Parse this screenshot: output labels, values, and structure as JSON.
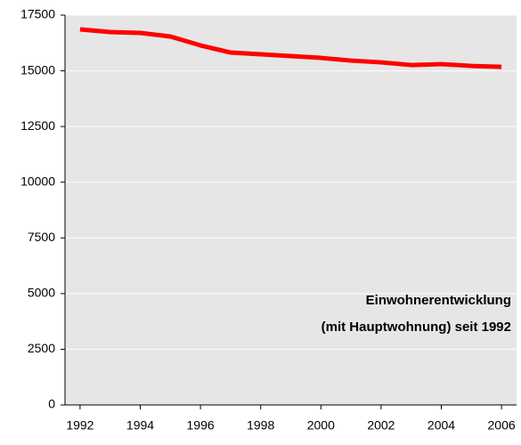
{
  "chart_data": {
    "type": "line",
    "title": [
      "Einwohnerentwicklung",
      "(mit Hauptwohnung) seit 1992"
    ],
    "x": [
      1992,
      1993,
      1994,
      1995,
      1996,
      1997,
      1998,
      1999,
      2000,
      2001,
      2002,
      2003,
      2004,
      2005,
      2006
    ],
    "series": [
      {
        "color": "#ff0000",
        "values": [
          16860,
          16740,
          16700,
          16540,
          16140,
          15820,
          15740,
          15660,
          15580,
          15460,
          15380,
          15260,
          15300,
          15220,
          15180
        ]
      }
    ],
    "xlim": [
      1991.5,
      2006.5
    ],
    "xticks": [
      1992,
      1994,
      1996,
      1998,
      2000,
      2002,
      2004,
      2006
    ],
    "ylim": [
      0,
      17500
    ],
    "yticks": [
      0,
      2500,
      5000,
      7500,
      10000,
      12500,
      15000,
      17500
    ],
    "grid": true
  }
}
